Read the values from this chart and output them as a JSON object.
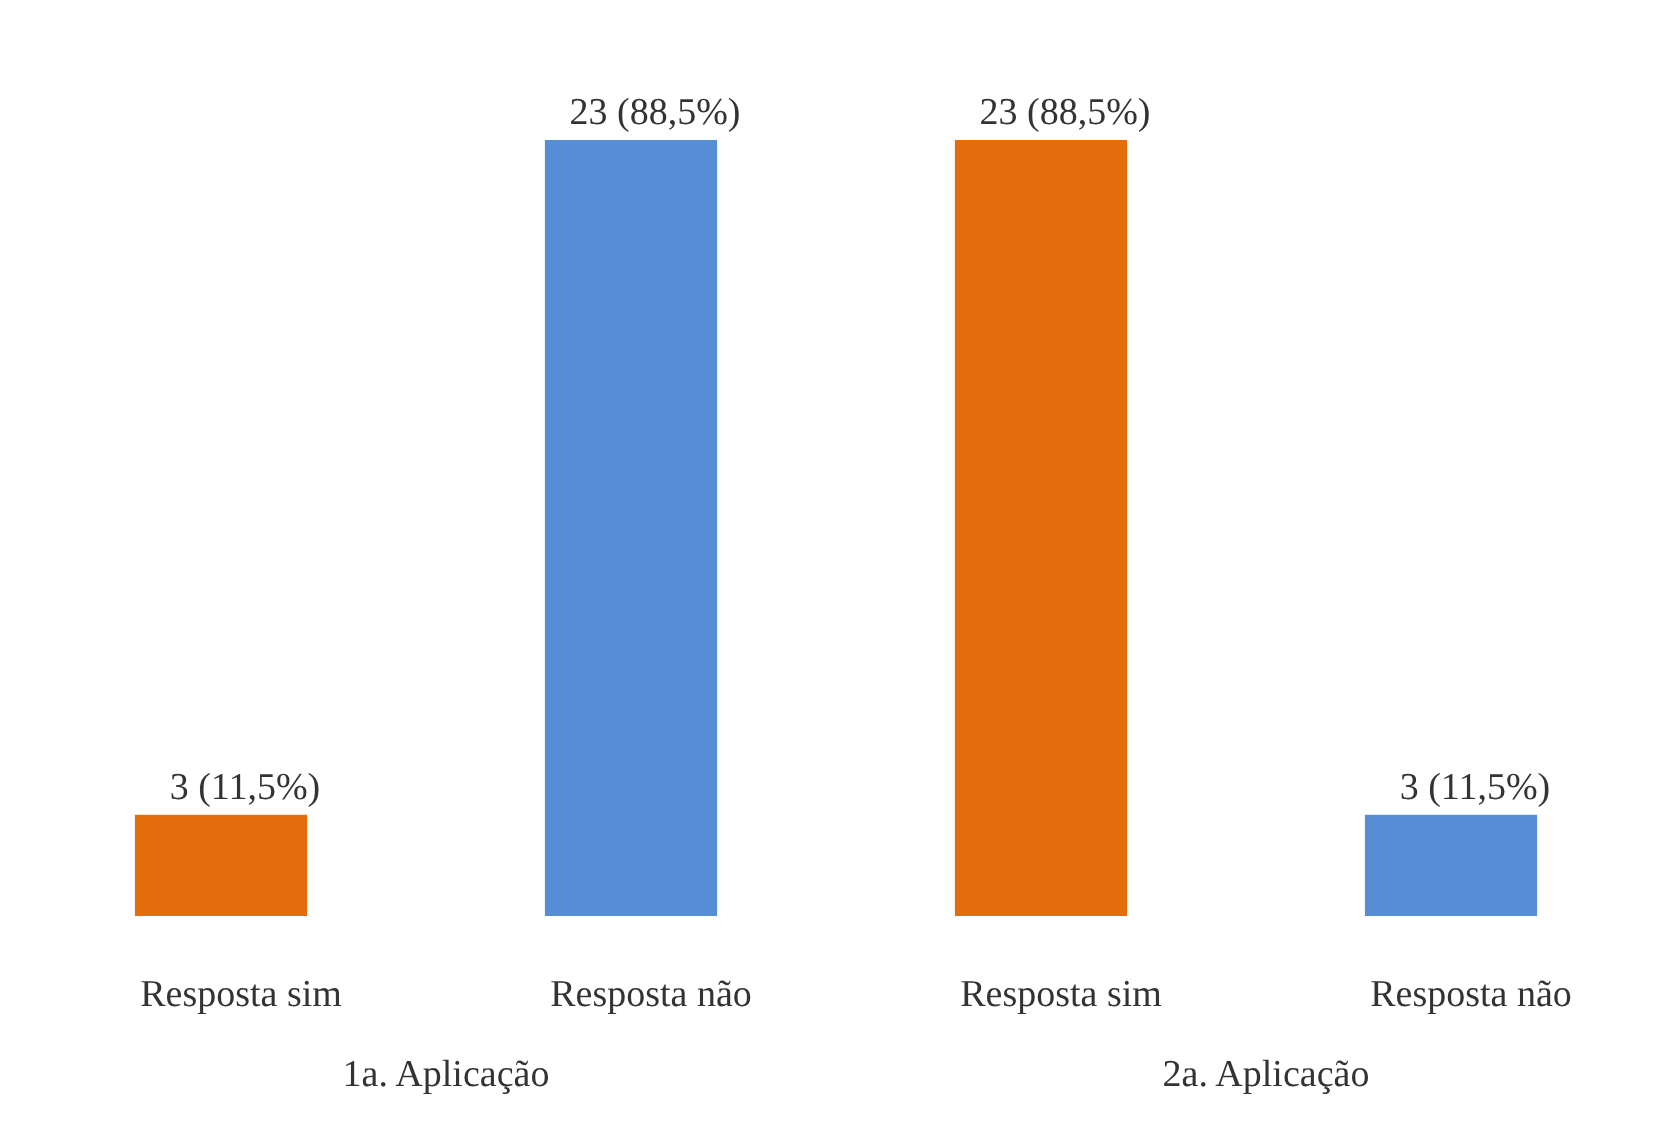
{
  "chart_data": {
    "type": "bar",
    "categories": [
      "Resposta sim",
      "Resposta não",
      "Resposta sim",
      "Resposta não"
    ],
    "values": [
      3,
      23,
      23,
      3
    ],
    "colors": [
      "#e46c0a",
      "#558ed5",
      "#e46c0a",
      "#558ed5"
    ],
    "value_labels": [
      "3 (11,5%)",
      "23 (88,5%)",
      "23 (88,5%)",
      "3 (11,5%)"
    ],
    "annotations": [
      "1a. Aplicação",
      "2a. Aplicação"
    ]
  }
}
